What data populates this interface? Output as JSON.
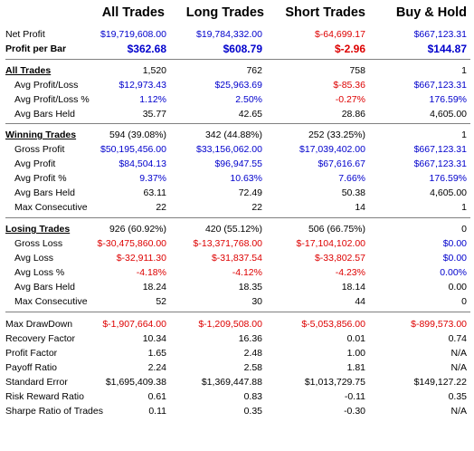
{
  "headers": [
    "All Trades",
    "Long Trades",
    "Short Trades",
    "Buy & Hold"
  ],
  "sections": [
    {
      "rows": [
        {
          "label": "Net Profit",
          "bold": false,
          "indent": false,
          "cells": [
            [
              "$19,719,608.00",
              "blue"
            ],
            [
              "$19,784,332.00",
              "blue"
            ],
            [
              "$-64,699.17",
              "red"
            ],
            [
              "$667,123.31",
              "blue"
            ]
          ]
        },
        {
          "label": "Profit per Bar",
          "bold": true,
          "indent": false,
          "cells": [
            [
              "$362.68",
              "blue"
            ],
            [
              "$608.79",
              "blue"
            ],
            [
              "$-2.96",
              "red"
            ],
            [
              "$144.87",
              "blue"
            ]
          ]
        }
      ]
    },
    {
      "rows": [
        {
          "label": "All Trades",
          "section": true,
          "indent": false,
          "cells": [
            [
              "1,520",
              "black"
            ],
            [
              "762",
              "black"
            ],
            [
              "758",
              "black"
            ],
            [
              "1",
              "black"
            ]
          ]
        },
        {
          "label": "Avg Profit/Loss",
          "indent": true,
          "cells": [
            [
              "$12,973.43",
              "blue"
            ],
            [
              "$25,963.69",
              "blue"
            ],
            [
              "$-85.36",
              "red"
            ],
            [
              "$667,123.31",
              "blue"
            ]
          ]
        },
        {
          "label": "Avg Profit/Loss %",
          "indent": true,
          "cells": [
            [
              "1.12%",
              "blue"
            ],
            [
              "2.50%",
              "blue"
            ],
            [
              "-0.27%",
              "red"
            ],
            [
              "176.59%",
              "blue"
            ]
          ]
        },
        {
          "label": "Avg Bars Held",
          "indent": true,
          "cells": [
            [
              "35.77",
              "black"
            ],
            [
              "42.65",
              "black"
            ],
            [
              "28.86",
              "black"
            ],
            [
              "4,605.00",
              "black"
            ]
          ]
        }
      ]
    },
    {
      "rows": [
        {
          "label": "Winning Trades",
          "section": true,
          "indent": false,
          "cells": [
            [
              "594 (39.08%)",
              "black"
            ],
            [
              "342 (44.88%)",
              "black"
            ],
            [
              "252 (33.25%)",
              "black"
            ],
            [
              "1",
              "black"
            ]
          ]
        },
        {
          "label": "Gross Profit",
          "indent": true,
          "cells": [
            [
              "$50,195,456.00",
              "blue"
            ],
            [
              "$33,156,062.00",
              "blue"
            ],
            [
              "$17,039,402.00",
              "blue"
            ],
            [
              "$667,123.31",
              "blue"
            ]
          ]
        },
        {
          "label": "Avg Profit",
          "indent": true,
          "cells": [
            [
              "$84,504.13",
              "blue"
            ],
            [
              "$96,947.55",
              "blue"
            ],
            [
              "$67,616.67",
              "blue"
            ],
            [
              "$667,123.31",
              "blue"
            ]
          ]
        },
        {
          "label": "Avg Profit %",
          "indent": true,
          "cells": [
            [
              "9.37%",
              "blue"
            ],
            [
              "10.63%",
              "blue"
            ],
            [
              "7.66%",
              "blue"
            ],
            [
              "176.59%",
              "blue"
            ]
          ]
        },
        {
          "label": "Avg Bars Held",
          "indent": true,
          "cells": [
            [
              "63.11",
              "black"
            ],
            [
              "72.49",
              "black"
            ],
            [
              "50.38",
              "black"
            ],
            [
              "4,605.00",
              "black"
            ]
          ]
        },
        {
          "label": "Max Consecutive",
          "indent": true,
          "cells": [
            [
              "22",
              "black"
            ],
            [
              "22",
              "black"
            ],
            [
              "14",
              "black"
            ],
            [
              "1",
              "black"
            ]
          ]
        }
      ]
    },
    {
      "rows": [
        {
          "label": "Losing Trades",
          "section": true,
          "indent": false,
          "cells": [
            [
              "926 (60.92%)",
              "black"
            ],
            [
              "420 (55.12%)",
              "black"
            ],
            [
              "506 (66.75%)",
              "black"
            ],
            [
              "0",
              "black"
            ]
          ]
        },
        {
          "label": "Gross Loss",
          "indent": true,
          "cells": [
            [
              "$-30,475,860.00",
              "red"
            ],
            [
              "$-13,371,768.00",
              "red"
            ],
            [
              "$-17,104,102.00",
              "red"
            ],
            [
              "$0.00",
              "blue"
            ]
          ]
        },
        {
          "label": "Avg Loss",
          "indent": true,
          "cells": [
            [
              "$-32,911.30",
              "red"
            ],
            [
              "$-31,837.54",
              "red"
            ],
            [
              "$-33,802.57",
              "red"
            ],
            [
              "$0.00",
              "blue"
            ]
          ]
        },
        {
          "label": "Avg Loss %",
          "indent": true,
          "cells": [
            [
              "-4.18%",
              "red"
            ],
            [
              "-4.12%",
              "red"
            ],
            [
              "-4.23%",
              "red"
            ],
            [
              "0.00%",
              "blue"
            ]
          ]
        },
        {
          "label": "Avg Bars Held",
          "indent": true,
          "cells": [
            [
              "18.24",
              "black"
            ],
            [
              "18.35",
              "black"
            ],
            [
              "18.14",
              "black"
            ],
            [
              "0.00",
              "black"
            ]
          ]
        },
        {
          "label": "Max Consecutive",
          "indent": true,
          "cells": [
            [
              "52",
              "black"
            ],
            [
              "30",
              "black"
            ],
            [
              "44",
              "black"
            ],
            [
              "0",
              "black"
            ]
          ]
        }
      ]
    },
    {
      "rows": [
        {
          "label": "Max DrawDown",
          "indent": false,
          "cells": [
            [
              "$-1,907,664.00",
              "red"
            ],
            [
              "$-1,209,508.00",
              "red"
            ],
            [
              "$-5,053,856.00",
              "red"
            ],
            [
              "$-899,573.00",
              "red"
            ]
          ]
        },
        {
          "label": "Recovery Factor",
          "indent": false,
          "cells": [
            [
              "10.34",
              "black"
            ],
            [
              "16.36",
              "black"
            ],
            [
              "0.01",
              "black"
            ],
            [
              "0.74",
              "black"
            ]
          ]
        },
        {
          "label": "Profit Factor",
          "indent": false,
          "cells": [
            [
              "1.65",
              "black"
            ],
            [
              "2.48",
              "black"
            ],
            [
              "1.00",
              "black"
            ],
            [
              "N/A",
              "black"
            ]
          ]
        },
        {
          "label": "Payoff Ratio",
          "indent": false,
          "cells": [
            [
              "2.24",
              "black"
            ],
            [
              "2.58",
              "black"
            ],
            [
              "1.81",
              "black"
            ],
            [
              "N/A",
              "black"
            ]
          ]
        },
        {
          "label": "Standard Error",
          "indent": false,
          "cells": [
            [
              "$1,695,409.38",
              "black"
            ],
            [
              "$1,369,447.88",
              "black"
            ],
            [
              "$1,013,729.75",
              "black"
            ],
            [
              "$149,127.22",
              "black"
            ]
          ]
        },
        {
          "label": "Risk Reward Ratio",
          "indent": false,
          "cells": [
            [
              "0.61",
              "black"
            ],
            [
              "0.83",
              "black"
            ],
            [
              "-0.11",
              "black"
            ],
            [
              "0.35",
              "black"
            ]
          ]
        },
        {
          "label": "Sharpe Ratio of Trades",
          "indent": false,
          "cells": [
            [
              "0.11",
              "black"
            ],
            [
              "0.35",
              "black"
            ],
            [
              "-0.30",
              "black"
            ],
            [
              "N/A",
              "black"
            ]
          ]
        }
      ]
    }
  ]
}
